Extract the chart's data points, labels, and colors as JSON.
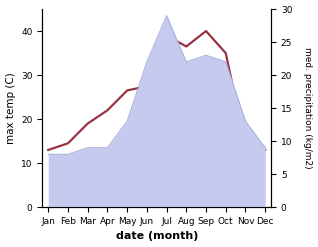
{
  "months": [
    "Jan",
    "Feb",
    "Mar",
    "Apr",
    "May",
    "Jun",
    "Jul",
    "Aug",
    "Sep",
    "Oct",
    "Nov",
    "Dec"
  ],
  "max_temp": [
    13.0,
    14.5,
    19.0,
    22.0,
    26.5,
    27.5,
    39.0,
    36.5,
    40.0,
    35.0,
    14.0,
    13.0
  ],
  "precipitation": [
    8,
    8,
    9,
    9,
    13,
    22,
    29,
    22,
    23,
    22,
    13,
    9
  ],
  "temp_color": "#993344",
  "precip_fill_color": "#c5caee",
  "precip_edge_color": "#aab0df",
  "left_ylabel": "max temp (C)",
  "right_ylabel": "med. precipitation (kg/m2)",
  "xlabel": "date (month)",
  "left_ylim": [
    0,
    45
  ],
  "right_ylim": [
    0,
    30
  ],
  "left_yticks": [
    0,
    10,
    20,
    30,
    40
  ],
  "right_yticks": [
    0,
    5,
    10,
    15,
    20,
    25,
    30
  ],
  "bg_color": "#ffffff",
  "figwidth": 3.18,
  "figheight": 2.47,
  "dpi": 100
}
